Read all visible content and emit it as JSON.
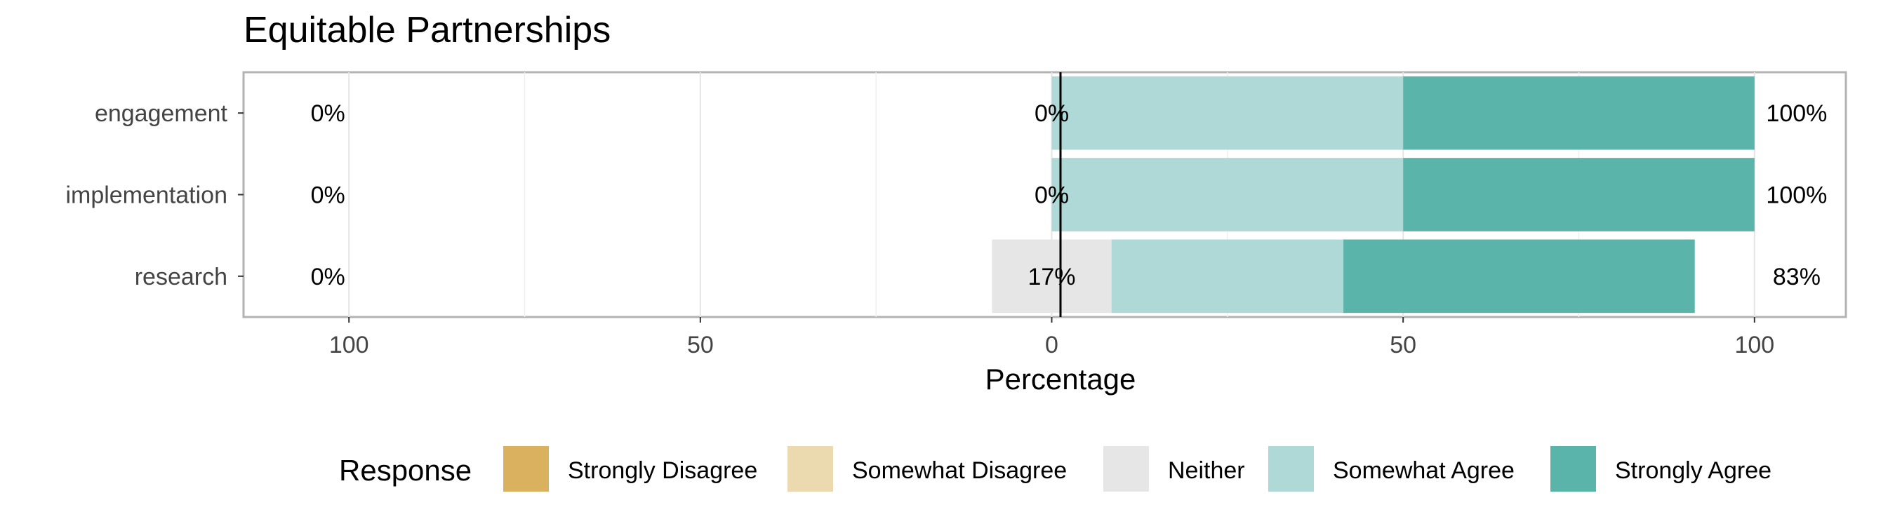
{
  "chart_data": {
    "type": "bar",
    "title": "Equitable Partnerships",
    "xlabel": "Percentage",
    "ylabel": "",
    "xlim": [
      -115,
      113
    ],
    "x_ticks": [
      {
        "value": -100,
        "label": "100"
      },
      {
        "value": -50,
        "label": "50"
      },
      {
        "value": 0,
        "label": "0"
      },
      {
        "value": 50,
        "label": "50"
      },
      {
        "value": 100,
        "label": "100"
      }
    ],
    "categories": [
      "engagement",
      "implementation",
      "research"
    ],
    "series": [
      {
        "name": "Strongly Disagree",
        "color": "#DAB25F",
        "values": [
          0,
          0,
          0
        ]
      },
      {
        "name": "Somewhat Disagree",
        "color": "#EBD9B0",
        "values": [
          0,
          0,
          0
        ]
      },
      {
        "name": "Neither",
        "color": "#E6E6E6",
        "values": [
          0,
          0,
          17
        ]
      },
      {
        "name": "Somewhat Agree",
        "color": "#AED9D6",
        "values": [
          50,
          50,
          33
        ]
      },
      {
        "name": "Strongly Agree",
        "color": "#5BB4AA",
        "values": [
          50,
          50,
          50
        ]
      }
    ],
    "left_labels": [
      "0%",
      "0%",
      "0%"
    ],
    "center_labels": [
      "0%",
      "0%",
      "17%"
    ],
    "right_labels": [
      "100%",
      "100%",
      "83%"
    ],
    "legend_title": "Response",
    "legend_position": "bottom",
    "grid": true
  }
}
